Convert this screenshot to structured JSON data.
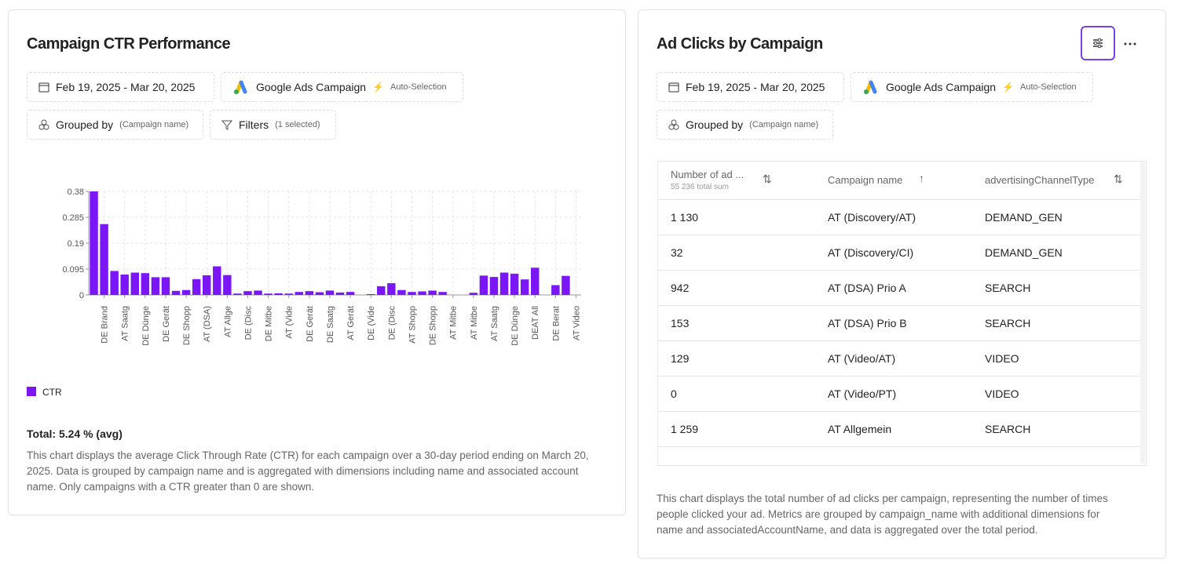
{
  "left_card": {
    "title": "Campaign CTR Performance",
    "date_range": "Feb 19, 2025 - Mar 20, 2025",
    "source": "Google Ads Campaign",
    "auto": "Auto-Selection",
    "grouped_by": "Grouped by",
    "grouped_by_value": "(Campaign name)",
    "filters": "Filters",
    "filters_value": "(1 selected)",
    "total": "Total: 5.24 % (avg)",
    "description": "This chart displays the average Click Through Rate (CTR) for each campaign over a 30-day period ending on March 20, 2025. Data is grouped by campaign name and is aggregated with dimensions including name and associated account name. Only campaigns with a CTR greater than 0 are shown."
  },
  "chart_data": {
    "type": "bar",
    "categories": [
      null,
      "DE Brand",
      null,
      "AT Saatg",
      null,
      "DE Dünge",
      null,
      "DE Gerät",
      null,
      "DE Shopp",
      null,
      "AT (DSA)",
      null,
      "AT Allge",
      null,
      "DE (Disc",
      null,
      "DE Mitbe",
      null,
      "AT (Vide",
      null,
      "DE Gerät",
      null,
      "DE Saatg",
      null,
      "AT Gerät",
      null,
      "DE (Vide",
      null,
      "DE (Disc",
      null,
      "AT Shopp",
      null,
      "DE Shopp",
      null,
      "AT Mitbe",
      null,
      "AT Mitbe",
      null,
      "AT Saatg",
      null,
      "DE Dünge",
      null,
      "DEAT All",
      null,
      "DE Berat",
      null,
      "AT Video"
    ],
    "series": [
      {
        "name": "CTR",
        "color": "#7b16f7",
        "values": [
          0.38,
          0.26,
          0.088,
          0.075,
          0.082,
          0.08,
          0.065,
          0.065,
          0.015,
          0.018,
          0.058,
          0.072,
          0.105,
          0.073,
          0.005,
          0.014,
          0.016,
          0.005,
          0.006,
          0.005,
          0.011,
          0.014,
          0.01,
          0.016,
          0.009,
          0.011,
          0,
          0.003,
          0.032,
          0.043,
          0.018,
          0.011,
          0.013,
          0.016,
          0.011,
          0,
          0,
          0.008,
          0.071,
          0.066,
          0.082,
          0.078,
          0.057,
          0.1,
          0,
          0.036,
          0.07,
          0
        ]
      }
    ],
    "ylim": [
      0,
      0.38
    ],
    "yticks": [
      0,
      0.095,
      0.19,
      0.285,
      0.38
    ],
    "grid": true
  },
  "right_card": {
    "title": "Ad Clicks by Campaign",
    "date_range": "Feb 19, 2025 - Mar 20, 2025",
    "source": "Google Ads Campaign",
    "auto": "Auto-Selection",
    "grouped_by": "Grouped by",
    "grouped_by_value": "(Campaign name)",
    "table": {
      "columns": [
        {
          "label": "Number of ad ...",
          "sub": "55 236 total sum"
        },
        {
          "label": "Campaign name"
        },
        {
          "label": "advertisingChannelType"
        }
      ],
      "rows": [
        [
          "1 130",
          "AT (Discovery/AT)",
          "DEMAND_GEN"
        ],
        [
          "32",
          "AT (Discovery/CI)",
          "DEMAND_GEN"
        ],
        [
          "942",
          "AT (DSA) Prio A",
          "SEARCH"
        ],
        [
          "153",
          "AT (DSA) Prio B",
          "SEARCH"
        ],
        [
          "129",
          "AT (Video/AT)",
          "VIDEO"
        ],
        [
          "0",
          "AT (Video/PT)",
          "VIDEO"
        ],
        [
          "1 259",
          "AT Allgemein",
          "SEARCH"
        ]
      ]
    },
    "description": "This chart displays the total number of ad clicks per campaign, representing the number of times people clicked your ad. Metrics are grouped by campaign_name with additional dimensions for name and associatedAccountName, and data is aggregated over the total period."
  }
}
